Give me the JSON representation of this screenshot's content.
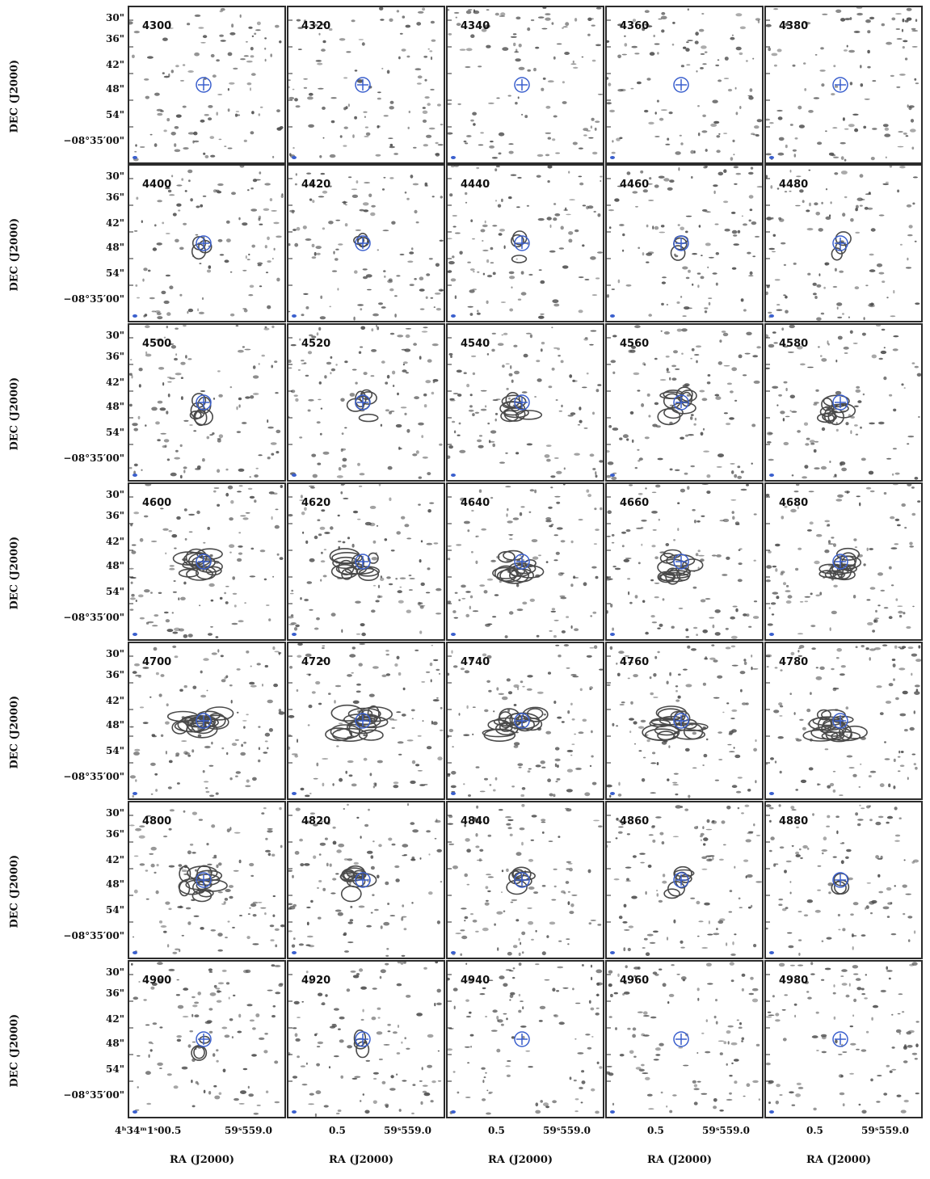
{
  "figure": {
    "colors": {
      "contour": "#4a4a4a",
      "marker": "#3a5fcd",
      "frame": "#2b2b2b"
    },
    "ylabel": "DEC (J2000)",
    "xlabel": "RA (J2000)",
    "dec_ticks": [
      "30\"",
      "36\"",
      "42\"",
      "48\"",
      "54\"",
      "−08°35′00\""
    ],
    "ra_first_col_tick": "4ʰ34ᵐ1ˢ00.5",
    "ra_tick_left": "0.5",
    "ra_tick_right": "59ˢ559.0",
    "panels": [
      {
        "label": "4300"
      },
      {
        "label": "4320"
      },
      {
        "label": "4340"
      },
      {
        "label": "4360"
      },
      {
        "label": "4380"
      },
      {
        "label": "4400"
      },
      {
        "label": "4420"
      },
      {
        "label": "4440"
      },
      {
        "label": "4460"
      },
      {
        "label": "4480"
      },
      {
        "label": "4500"
      },
      {
        "label": "4520"
      },
      {
        "label": "4540"
      },
      {
        "label": "4560"
      },
      {
        "label": "4580"
      },
      {
        "label": "4600"
      },
      {
        "label": "4620"
      },
      {
        "label": "4640"
      },
      {
        "label": "4660"
      },
      {
        "label": "4680"
      },
      {
        "label": "4700"
      },
      {
        "label": "4720"
      },
      {
        "label": "4740"
      },
      {
        "label": "4760"
      },
      {
        "label": "4780"
      },
      {
        "label": "4800"
      },
      {
        "label": "4820"
      },
      {
        "label": "4840"
      },
      {
        "label": "4860"
      },
      {
        "label": "4880"
      },
      {
        "label": "4900"
      },
      {
        "label": "4920"
      },
      {
        "label": "4940"
      },
      {
        "label": "4960"
      },
      {
        "label": "4980"
      }
    ]
  }
}
